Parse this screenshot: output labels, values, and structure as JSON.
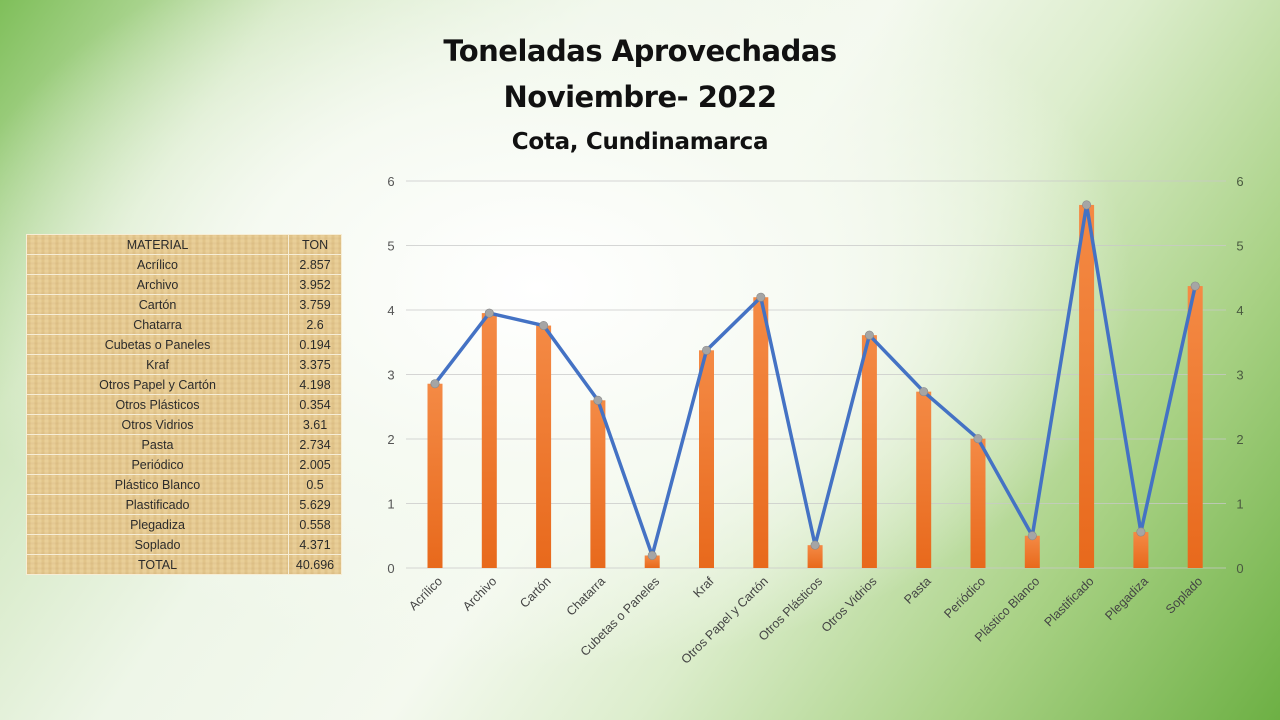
{
  "titles": {
    "line1": "Toneladas Aprovechadas",
    "line2": "Noviembre- 2022",
    "line3": "Cota, Cundinamarca"
  },
  "table": {
    "headers": [
      "MATERIAL",
      "TON"
    ],
    "rows": [
      [
        "Acrílico",
        "2.857"
      ],
      [
        "Archivo",
        "3.952"
      ],
      [
        "Cartón",
        "3.759"
      ],
      [
        "Chatarra",
        "2.6"
      ],
      [
        "Cubetas o Paneles",
        "0.194"
      ],
      [
        "Kraf",
        "3.375"
      ],
      [
        "Otros Papel y Cartón",
        "4.198"
      ],
      [
        "Otros Plásticos",
        "0.354"
      ],
      [
        "Otros Vidrios",
        "3.61"
      ],
      [
        "Pasta",
        "2.734"
      ],
      [
        "Periódico",
        "2.005"
      ],
      [
        "Plástico Blanco",
        "0.5"
      ],
      [
        "Plastificado",
        "5.629"
      ],
      [
        "Plegadiza",
        "0.558"
      ],
      [
        "Soplado",
        "4.371"
      ]
    ],
    "total": [
      "TOTAL",
      "40.696"
    ]
  },
  "colors": {
    "bar": "#ed7d31",
    "line": "#4472c4",
    "marker": "#a5a5a5"
  },
  "chart_data": {
    "type": "bar",
    "title": "Toneladas Aprovechadas Noviembre- 2022 Cota, Cundinamarca",
    "xlabel": "",
    "ylabel": "",
    "categories": [
      "Acrílico",
      "Archivo",
      "Cartón",
      "Chatarra",
      "Cubetas o Paneles",
      "Kraf",
      "Otros Papel y Cartón",
      "Otros Plásticos",
      "Otros Vidrios",
      "Pasta",
      "Periódico",
      "Plástico Blanco",
      "Plastificado",
      "Plegadiza",
      "Soplado"
    ],
    "series": [
      {
        "name": "TON (barras)",
        "type": "bar",
        "axis": "left",
        "values": [
          2.857,
          3.952,
          3.759,
          2.6,
          0.194,
          3.375,
          4.198,
          0.354,
          3.61,
          2.734,
          2.005,
          0.5,
          5.629,
          0.558,
          4.371
        ]
      },
      {
        "name": "TON (línea)",
        "type": "line",
        "axis": "right",
        "values": [
          2.857,
          3.952,
          3.759,
          2.6,
          0.194,
          3.375,
          4.198,
          0.354,
          3.61,
          2.734,
          2.005,
          0.5,
          5.629,
          0.558,
          4.371
        ]
      }
    ],
    "ylim": [
      0,
      6
    ],
    "y2lim": [
      0,
      6
    ],
    "yticks": [
      "0",
      "1",
      "2",
      "3",
      "4",
      "5",
      "6"
    ],
    "y2ticks": [
      "0",
      "1",
      "2",
      "3",
      "4",
      "5",
      "6"
    ],
    "grid": true,
    "legend": "none"
  }
}
